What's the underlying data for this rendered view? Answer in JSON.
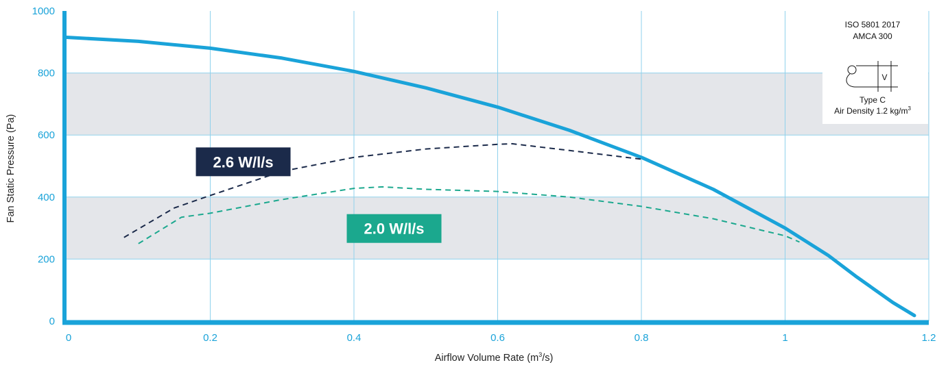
{
  "chart_data": {
    "type": "line",
    "xlabel_main": "Airflow Volume Rate (m",
    "xlabel_sup": "3",
    "xlabel_tail": "/s)",
    "ylabel": "Fan Static Pressure (Pa)",
    "xlim": [
      0,
      1.2
    ],
    "ylim": [
      0,
      1000
    ],
    "x_ticks": [
      "0",
      "0.2",
      "0.4",
      "0.6",
      "0.8",
      "1",
      "1.2"
    ],
    "y_ticks": [
      "0",
      "200",
      "400",
      "600",
      "800",
      "1000"
    ],
    "shaded_bands": [
      [
        200,
        400
      ],
      [
        600,
        800
      ]
    ],
    "grid": true,
    "series": [
      {
        "style": "solid",
        "color": "#1aa3d9",
        "x": [
          0.0,
          0.1,
          0.2,
          0.3,
          0.4,
          0.5,
          0.6,
          0.7,
          0.8,
          0.9,
          1.0,
          1.06,
          1.1,
          1.15,
          1.18
        ],
        "y": [
          915,
          902,
          880,
          848,
          805,
          752,
          690,
          615,
          528,
          425,
          300,
          212,
          142,
          60,
          18
        ]
      },
      {
        "style": "dashed",
        "color": "#1b2a4a",
        "x": [
          0.08,
          0.15,
          0.2,
          0.3,
          0.4,
          0.5,
          0.6,
          0.62,
          0.7,
          0.8
        ],
        "y": [
          270,
          365,
          405,
          483,
          528,
          555,
          570,
          572,
          550,
          522
        ]
      },
      {
        "style": "dashed",
        "color": "#1ba88e",
        "x": [
          0.1,
          0.16,
          0.2,
          0.3,
          0.4,
          0.44,
          0.5,
          0.6,
          0.7,
          0.8,
          0.9,
          1.0,
          1.02
        ],
        "y": [
          250,
          335,
          348,
          392,
          428,
          433,
          425,
          418,
          400,
          370,
          330,
          275,
          255
        ]
      }
    ],
    "annotations": [
      {
        "text": "2.6 W/l/s",
        "color": "#1b2a4a",
        "x": 0.18,
        "y": 560
      },
      {
        "text": "2.0 W/l/s",
        "color": "#1ba88e",
        "x": 0.39,
        "y": 345
      }
    ]
  },
  "certification": {
    "line1": "ISO 5801 2017",
    "line2": "AMCA 300",
    "symbol_letter": "V",
    "line3": "Type C",
    "line4_main": "Air Density 1.2 kg/m",
    "line4_sup": "3"
  },
  "colors": {
    "axis": "#1aa3d9",
    "grid": "#8fd1ec",
    "band": "#e4e6ea"
  }
}
